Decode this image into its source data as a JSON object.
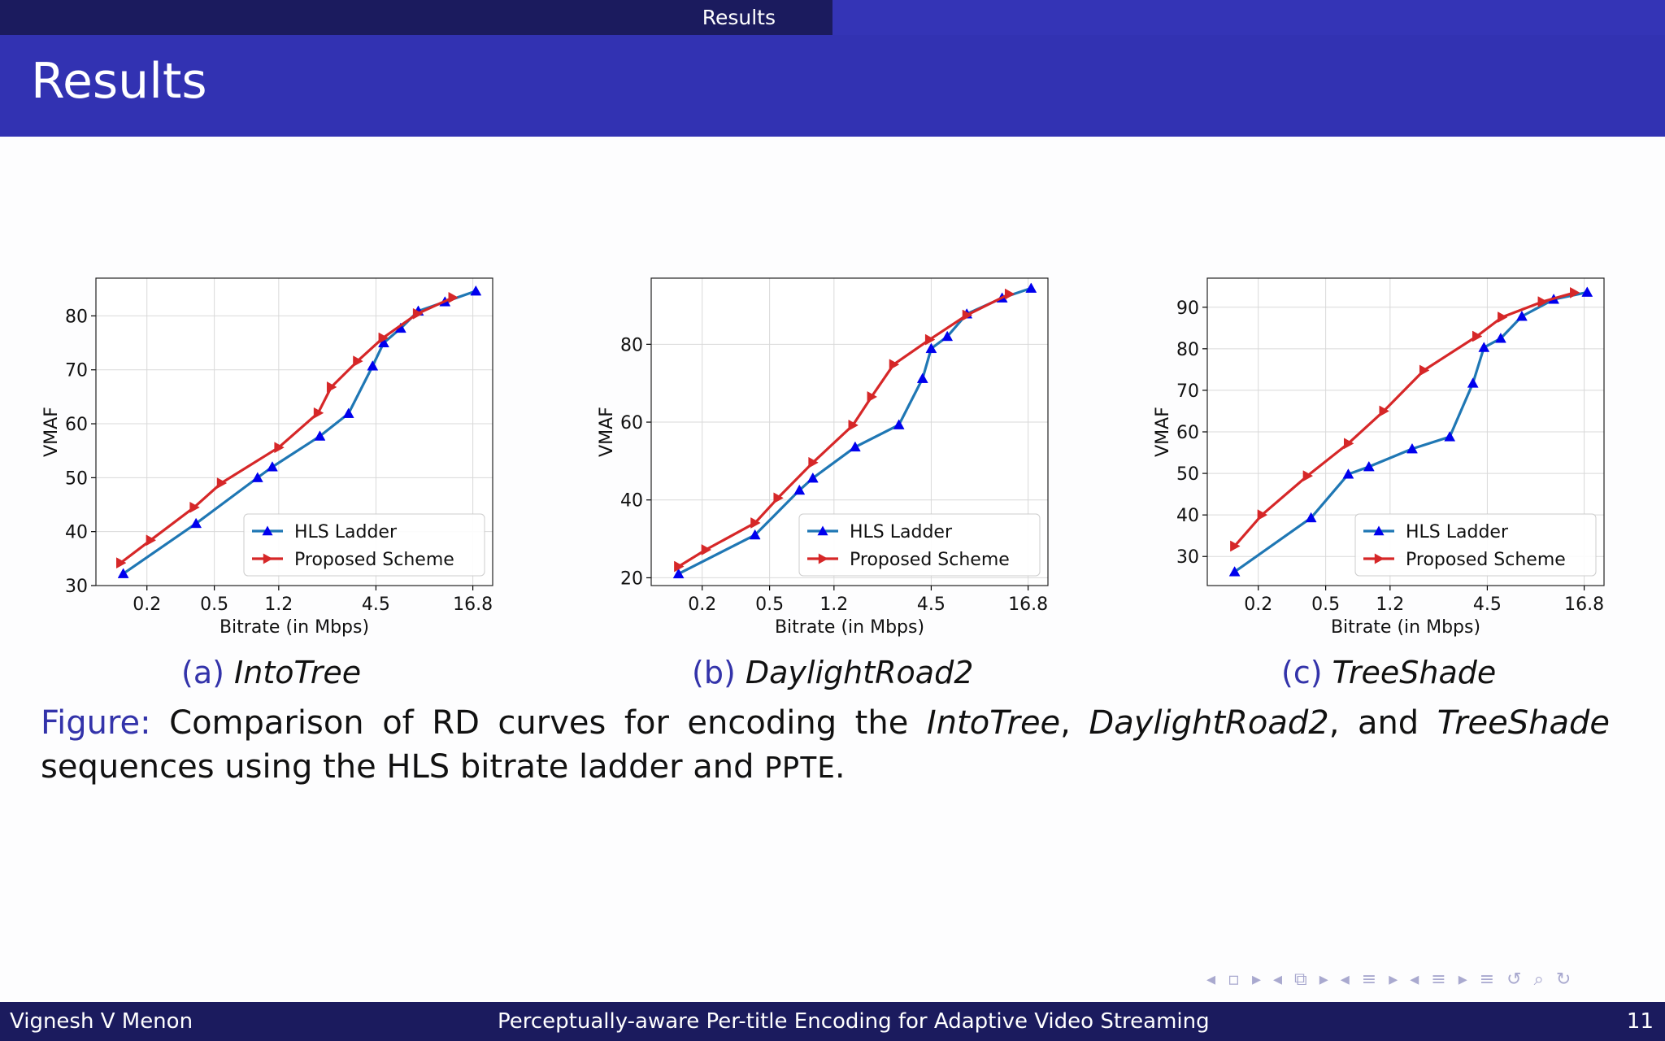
{
  "header": {
    "section_label": "Results",
    "frame_title": "Results"
  },
  "subfigures": [
    {
      "label": "(a)",
      "name": "IntoTree"
    },
    {
      "label": "(b)",
      "name": "DaylightRoad2"
    },
    {
      "label": "(c)",
      "name": "TreeShade"
    }
  ],
  "caption": {
    "prefix": "Figure:",
    "t1": "Comparison of RD curves for encoding the",
    "s1": "IntoTree",
    "t2": ",",
    "s2": "DaylightRoad2",
    "t3": ", and",
    "s3": "TreeShade",
    "t4": "sequences using the HLS bitrate ladder and",
    "method": "PPTE",
    "t5": "."
  },
  "footer": {
    "author": "Vignesh V Menon",
    "talk_title": "Perceptually-aware Per-title Encoding for Adaptive Video Streaming",
    "page": "11"
  },
  "nav_symbols": "◂ ▫ ▸ ◂ ⧉ ▸ ◂ ≡ ▸ ◂ ≡ ▸ ≡ ↺ ⌕ ↻",
  "colors": {
    "hls": "#1f77b4",
    "hls_marker": "#0000ee",
    "proposed": "#d62728",
    "accent": "#3333aa"
  },
  "chart_data": [
    {
      "type": "line",
      "xlabel": "Bitrate (in Mbps)",
      "ylabel": "VMAF",
      "x_scale": "log",
      "xticks": [
        "0.2",
        "0.5",
        "1.2",
        "4.5",
        "16.8"
      ],
      "yticks": [
        30,
        40,
        50,
        60,
        70,
        80
      ],
      "xlim": [
        0.1,
        22
      ],
      "ylim": [
        30,
        87
      ],
      "grid": true,
      "legend": "lower-right",
      "series": [
        {
          "name": "HLS Ladder",
          "marker": "triangle-up",
          "color": "#1f77b4",
          "x": [
            0.145,
            0.39,
            0.9,
            1.1,
            2.1,
            3.1,
            4.3,
            5.0,
            6.3,
            8.0,
            11.5,
            17.5
          ],
          "y": [
            32.2,
            41.5,
            50.0,
            52.0,
            57.7,
            61.9,
            70.7,
            75.0,
            77.7,
            80.9,
            82.6,
            84.6
          ]
        },
        {
          "name": "Proposed Scheme",
          "marker": "triangle-right",
          "color": "#d62728",
          "x": [
            0.14,
            0.21,
            0.38,
            0.55,
            1.2,
            2.05,
            2.45,
            3.5,
            4.95,
            7.9,
            12.8
          ],
          "y": [
            34.2,
            38.4,
            44.5,
            49.0,
            55.6,
            62.0,
            66.8,
            71.6,
            75.9,
            80.4,
            83.4
          ]
        }
      ]
    },
    {
      "type": "line",
      "xlabel": "Bitrate (in Mbps)",
      "ylabel": "VMAF",
      "x_scale": "log",
      "xticks": [
        "0.2",
        "0.5",
        "1.2",
        "4.5",
        "16.8"
      ],
      "yticks": [
        20,
        40,
        60,
        80
      ],
      "xlim": [
        0.1,
        22
      ],
      "ylim": [
        18,
        97
      ],
      "grid": true,
      "legend": "lower-right",
      "series": [
        {
          "name": "HLS Ladder",
          "marker": "triangle-up",
          "color": "#1f77b4",
          "x": [
            0.145,
            0.41,
            0.75,
            0.9,
            1.6,
            2.9,
            4.0,
            4.5,
            5.6,
            7.3,
            11.8,
            17.5
          ],
          "y": [
            21.0,
            31.0,
            42.5,
            45.6,
            53.6,
            59.3,
            71.2,
            78.9,
            82.0,
            87.8,
            91.9,
            94.4
          ]
        },
        {
          "name": "Proposed Scheme",
          "marker": "triangle-right",
          "color": "#d62728",
          "x": [
            0.145,
            0.21,
            0.41,
            0.56,
            0.9,
            1.55,
            2.0,
            2.7,
            4.4,
            7.3,
            13.0
          ],
          "y": [
            22.9,
            27.2,
            34.1,
            40.5,
            49.6,
            59.2,
            66.5,
            74.8,
            81.2,
            87.5,
            92.9
          ]
        }
      ]
    },
    {
      "type": "line",
      "xlabel": "Bitrate (in Mbps)",
      "ylabel": "VMAF",
      "x_scale": "log",
      "xticks": [
        "0.2",
        "0.5",
        "1.2",
        "4.5",
        "16.8"
      ],
      "yticks": [
        30,
        40,
        50,
        60,
        70,
        80,
        90
      ],
      "xlim": [
        0.1,
        22
      ],
      "ylim": [
        23,
        97
      ],
      "grid": true,
      "legend": "lower-right",
      "series": [
        {
          "name": "HLS Ladder",
          "marker": "triangle-up",
          "color": "#1f77b4",
          "x": [
            0.145,
            0.41,
            0.68,
            0.9,
            1.62,
            2.7,
            3.7,
            4.3,
            5.4,
            7.2,
            11.1,
            17.5
          ],
          "y": [
            26.3,
            39.3,
            49.8,
            51.6,
            55.9,
            58.8,
            71.7,
            80.3,
            82.5,
            87.8,
            91.9,
            93.6
          ]
        },
        {
          "name": "Proposed Scheme",
          "marker": "triangle-right",
          "color": "#d62728",
          "x": [
            0.145,
            0.21,
            0.39,
            0.68,
            1.1,
            1.9,
            3.9,
            5.5,
            9.5,
            14.7
          ],
          "y": [
            32.5,
            40.0,
            49.4,
            57.2,
            65.0,
            74.8,
            83.0,
            87.6,
            91.3,
            93.5
          ]
        }
      ]
    }
  ]
}
